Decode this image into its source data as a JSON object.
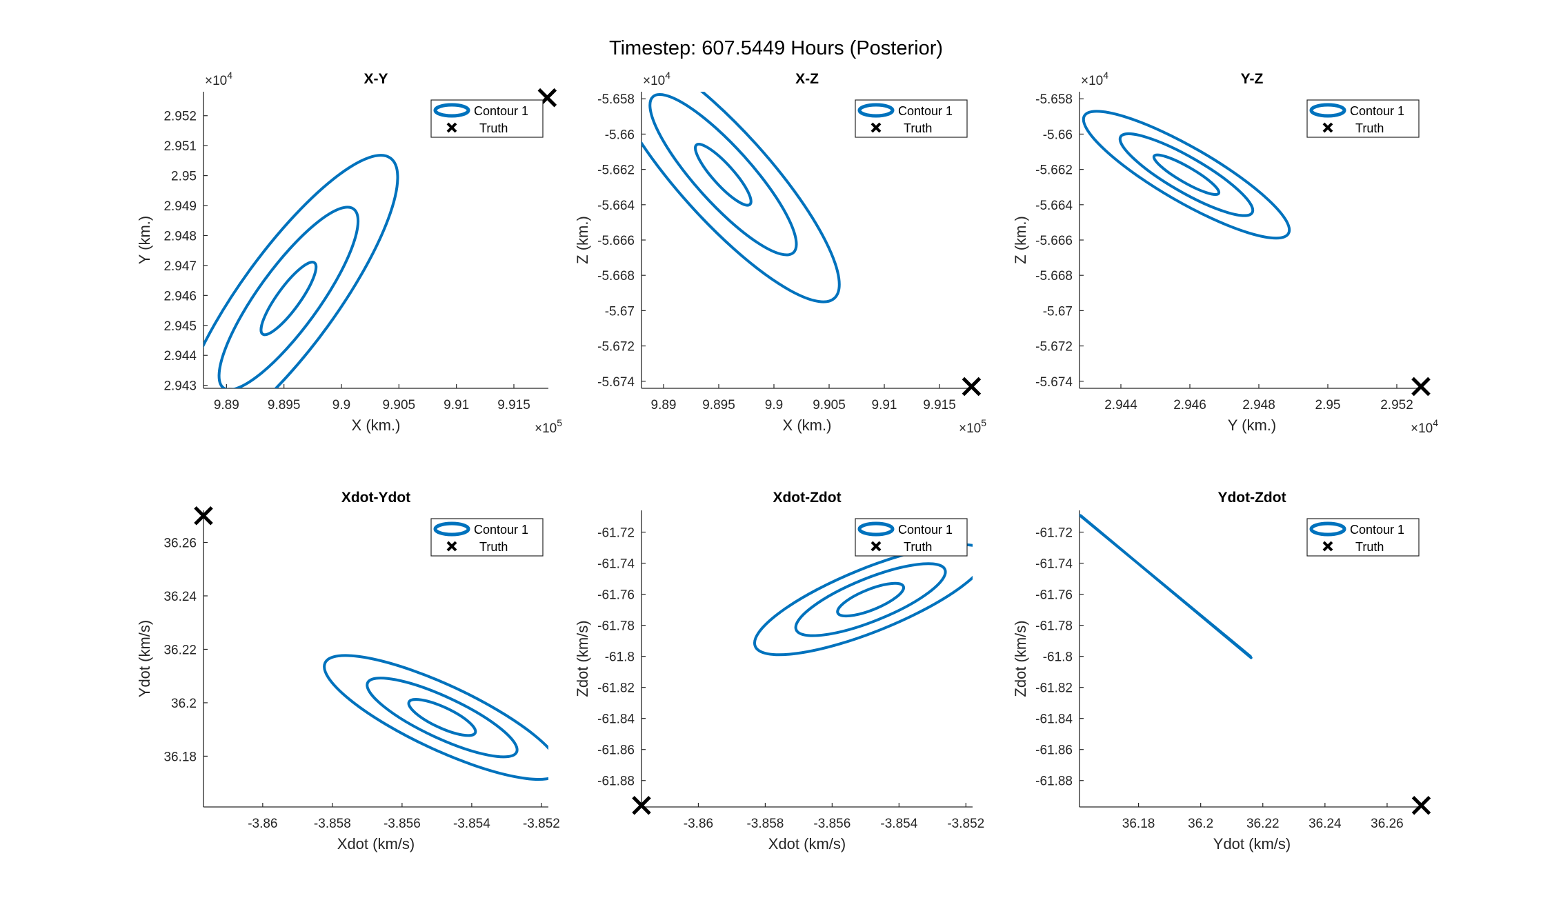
{
  "figure": {
    "title": "Timestep: 607.5449 Hours (Posterior)"
  },
  "legend_entries": [
    "Contour 1",
    "Truth"
  ],
  "colors": {
    "contour": "#0072BD",
    "truth": "#000000",
    "axes": "#262626"
  },
  "chart_data": [
    {
      "type": "line",
      "title": "X-Y",
      "xlabel": "X (km.)",
      "ylabel": "Y (km.)",
      "xlim": [
        988800,
        991800
      ],
      "ylim": [
        29429,
        29528
      ],
      "xtick_values": [
        989000,
        989500,
        990000,
        990500,
        991000,
        991500
      ],
      "xtick_labels": [
        "9.89",
        "9.895",
        "9.9",
        "9.905",
        "9.91",
        "9.915"
      ],
      "ytick_values": [
        29430,
        29440,
        29450,
        29460,
        29470,
        29480,
        29490,
        29500,
        29510,
        29520
      ],
      "ytick_labels": [
        "2.943",
        "2.944",
        "2.945",
        "2.946",
        "2.947",
        "2.948",
        "2.949",
        "2.95",
        "2.951",
        "2.952"
      ],
      "x_exponent": "×10^5",
      "y_exponent": "×10^4",
      "legend_position": "top-right",
      "series": [
        {
          "name": "Contour 1",
          "center": [
            989540,
            29459
          ],
          "major_axis_angle_deg": 54,
          "half_widths_x": [
            180,
            480,
            760
          ],
          "half_widths_y": [
            13,
            32,
            50
          ]
        }
      ],
      "truth": [
        991790,
        29526
      ]
    },
    {
      "type": "line",
      "title": "X-Z",
      "xlabel": "X (km.)",
      "ylabel": "Z (km.)",
      "xlim": [
        988800,
        991800
      ],
      "ylim": [
        -56744,
        -56576
      ],
      "xtick_values": [
        989000,
        989500,
        990000,
        990500,
        991000,
        991500
      ],
      "xtick_labels": [
        "9.89",
        "9.895",
        "9.9",
        "9.905",
        "9.91",
        "9.915"
      ],
      "ytick_values": [
        -56740,
        -56720,
        -56700,
        -56680,
        -56660,
        -56640,
        -56620,
        -56600,
        -56580
      ],
      "ytick_labels": [
        "-5.674",
        "-5.672",
        "-5.67",
        "-5.668",
        "-5.666",
        "-5.664",
        "-5.662",
        "-5.66",
        "-5.658"
      ],
      "x_exponent": "×10^5",
      "y_exponent": "×10^4",
      "legend_position": "top-right",
      "series": [
        {
          "name": "Contour 1",
          "center": [
            989540,
            -56623
          ],
          "major_axis_angle_deg": -48,
          "half_widths_x": [
            170,
            460,
            740
          ],
          "half_widths_y": [
            20,
            52,
            82
          ]
        }
      ],
      "truth": [
        991790,
        -56743
      ]
    },
    {
      "type": "line",
      "title": "Y-Z",
      "xlabel": "Y (km.)",
      "ylabel": "Z (km.)",
      "xlim": [
        29428,
        29528
      ],
      "ylim": [
        -56744,
        -56576
      ],
      "xtick_values": [
        29440,
        29460,
        29480,
        29500,
        29520
      ],
      "xtick_labels": [
        "2.944",
        "2.946",
        "2.948",
        "2.95",
        "2.952"
      ],
      "ytick_values": [
        -56740,
        -56720,
        -56700,
        -56680,
        -56660,
        -56640,
        -56620,
        -56600,
        -56580
      ],
      "ytick_labels": [
        "-5.674",
        "-5.672",
        "-5.67",
        "-5.668",
        "-5.666",
        "-5.664",
        "-5.662",
        "-5.66",
        "-5.658"
      ],
      "x_exponent": "×10^4",
      "y_exponent": "×10^4",
      "legend_position": "top-right",
      "series": [
        {
          "name": "Contour 1",
          "center": [
            29459,
            -56623
          ],
          "major_axis_angle_deg": -30,
          "half_widths_x": [
            10,
            20,
            31
          ],
          "half_widths_y": [
            8,
            18,
            28
          ]
        }
      ],
      "truth": [
        29527,
        -56743
      ]
    },
    {
      "type": "line",
      "title": "Xdot-Ydot",
      "xlabel": "Xdot (km/s)",
      "ylabel": "Ydot (km/s)",
      "xlim": [
        -3.8617,
        -3.8518
      ],
      "ylim": [
        36.161,
        36.272
      ],
      "xtick_values": [
        -3.86,
        -3.858,
        -3.856,
        -3.854,
        -3.852
      ],
      "xtick_labels": [
        "-3.86",
        "-3.858",
        "-3.856",
        "-3.854",
        "-3.852"
      ],
      "ytick_values": [
        36.18,
        36.2,
        36.22,
        36.24,
        36.26
      ],
      "ytick_labels": [
        "36.18",
        "36.2",
        "36.22",
        "36.24",
        "36.26"
      ],
      "x_exponent": "",
      "y_exponent": "",
      "legend_position": "top-right",
      "series": [
        {
          "name": "Contour 1",
          "center": [
            -3.85485,
            36.1945
          ],
          "major_axis_angle_deg": -25,
          "half_widths_x": [
            0.0009,
            0.0021,
            0.0033
          ],
          "half_widths_y": [
            0.007,
            0.014,
            0.022
          ]
        }
      ],
      "truth": [
        -3.8617,
        36.27
      ]
    },
    {
      "type": "line",
      "title": "Xdot-Zdot",
      "xlabel": "Xdot (km/s)",
      "ylabel": "Zdot (km/s)",
      "xlim": [
        -3.8617,
        -3.8518
      ],
      "ylim": [
        -61.897,
        -61.706
      ],
      "xtick_values": [
        -3.86,
        -3.858,
        -3.856,
        -3.854,
        -3.852
      ],
      "xtick_labels": [
        "-3.86",
        "-3.858",
        "-3.856",
        "-3.854",
        "-3.852"
      ],
      "ytick_values": [
        -61.88,
        -61.86,
        -61.84,
        -61.82,
        -61.8,
        -61.78,
        -61.76,
        -61.74,
        -61.72
      ],
      "ytick_labels": [
        "-61.88",
        "-61.86",
        "-61.84",
        "-61.82",
        "-61.8",
        "-61.78",
        "-61.76",
        "-61.74",
        "-61.72"
      ],
      "x_exponent": "",
      "y_exponent": "",
      "legend_position": "top-right",
      "series": [
        {
          "name": "Contour 1",
          "center": [
            -3.85485,
            -61.7635
          ],
          "major_axis_angle_deg": 22,
          "half_widths_x": [
            0.0009,
            0.0021,
            0.0033
          ],
          "half_widths_y": [
            0.012,
            0.025,
            0.037
          ]
        }
      ],
      "truth": [
        -3.8617,
        -61.896
      ]
    },
    {
      "type": "line",
      "title": "Ydot-Zdot",
      "xlabel": "Ydot (km/s)",
      "ylabel": "Zdot (km/s)",
      "xlim": [
        36.161,
        36.272
      ],
      "ylim": [
        -61.897,
        -61.706
      ],
      "xtick_values": [
        36.18,
        36.2,
        36.22,
        36.24,
        36.26
      ],
      "xtick_labels": [
        "36.18",
        "36.2",
        "36.22",
        "36.24",
        "36.26"
      ],
      "ytick_values": [
        -61.88,
        -61.86,
        -61.84,
        -61.82,
        -61.8,
        -61.78,
        -61.76,
        -61.74,
        -61.72
      ],
      "ytick_labels": [
        "-61.88",
        "-61.86",
        "-61.84",
        "-61.82",
        "-61.8",
        "-61.78",
        "-61.76",
        "-61.74",
        "-61.72"
      ],
      "x_exponent": "",
      "y_exponent": "",
      "legend_position": "top-right",
      "series": [
        {
          "name": "Contour 1",
          "segment": [
            [
              36.161,
              -61.709
            ],
            [
              36.216,
              -61.8
            ]
          ],
          "note": "degenerate (nearly linear) contour"
        }
      ],
      "truth": [
        36.271,
        -61.896
      ]
    }
  ]
}
